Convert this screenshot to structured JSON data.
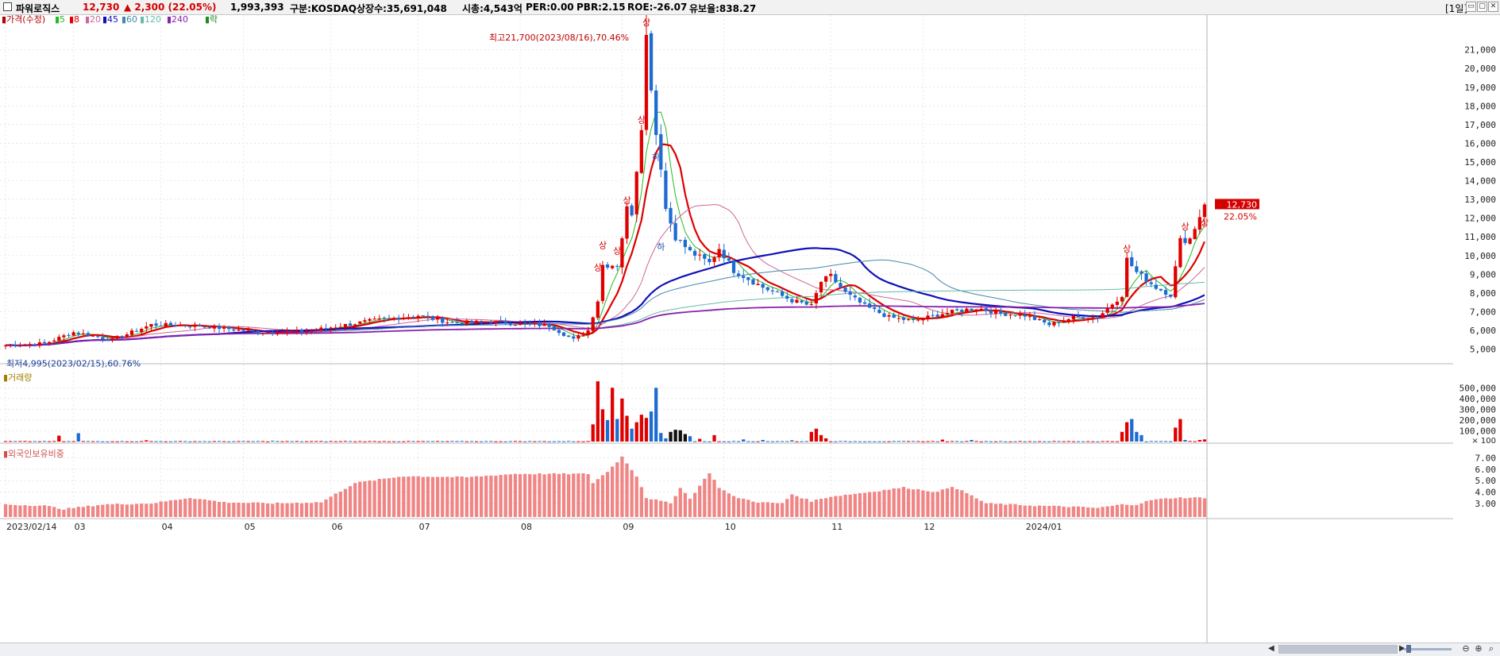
{
  "header": {
    "name": "파워로직스",
    "price": "12,730",
    "change": "▲ 2,300 (22.05%)",
    "volume": "1,993,393",
    "market": "구분:KOSDAQ",
    "shares": "상장수:35,691,048",
    "cap": "시총:4,543억",
    "per": "PER:0.00",
    "pbr": "PBR:2.15",
    "roe": "ROE:-26.07",
    "float": "유보율:838.27",
    "period": "[1일]",
    "win_buttons": [
      "▭",
      "▢",
      "✕"
    ]
  },
  "colors": {
    "up": "#e00000",
    "down": "#1e6cd0",
    "neutral": "#111111",
    "ma5": "#22bb22",
    "ma8": "#dd0000",
    "ma20": "#cc6699",
    "ma45": "#1010b8",
    "ma60": "#4488aa",
    "ma120": "#66bbaa",
    "ma240": "#8822aa",
    "foreign": "#f08585",
    "grid": "#e8e8e8"
  },
  "chart_data": [
    {
      "type": "candlestick",
      "title": "가격(수정)",
      "legend": [
        "가격(수정)",
        "5",
        "8",
        "20",
        "45",
        "60",
        "120",
        "240",
        "락"
      ],
      "x_labels": [
        "2023/02/14",
        "03",
        "04",
        "05",
        "06",
        "07",
        "08",
        "09",
        "10",
        "11",
        "12",
        "2024/01"
      ],
      "y_ticks": [
        5000,
        6000,
        7000,
        8000,
        9000,
        10000,
        11000,
        12000,
        13000,
        14000,
        15000,
        16000,
        17000,
        18000,
        19000,
        20000,
        21000
      ],
      "y_tick_labels": [
        "5,000",
        "6,000",
        "7,000",
        "8,000",
        "9,000",
        "10,000",
        "11,000",
        "12,000",
        "13,000",
        "14,000",
        "15,000",
        "16,000",
        "17,000",
        "18,000",
        "19,000",
        "20,000",
        "21,000"
      ],
      "ylim": [
        4300,
        22600
      ],
      "high_annotation": "최고21,700(2023/08/16),70.46%",
      "low_annotation": "최저4,995(2023/02/15),60.76%",
      "last_price": "12,730",
      "last_change": "22.05%",
      "event_markers": [
        "상",
        "상",
        "상",
        "상",
        "상",
        "상",
        "상",
        "하",
        "하",
        "상",
        "상"
      ],
      "anchors": [
        [
          0,
          5200
        ],
        [
          8,
          5300
        ],
        [
          14,
          5900
        ],
        [
          22,
          5500
        ],
        [
          30,
          6300
        ],
        [
          40,
          6250
        ],
        [
          52,
          5900
        ],
        [
          62,
          5950
        ],
        [
          75,
          6500
        ],
        [
          85,
          6800
        ],
        [
          92,
          6400
        ],
        [
          100,
          6450
        ],
        [
          112,
          6250
        ],
        [
          117,
          5500
        ],
        [
          120,
          6000
        ],
        [
          122,
          7600
        ],
        [
          123,
          9500
        ],
        [
          126,
          9500
        ],
        [
          128,
          12500
        ],
        [
          129,
          12300
        ],
        [
          131,
          17000
        ],
        [
          132,
          21700
        ],
        [
          134,
          16500
        ],
        [
          135,
          14800
        ],
        [
          136,
          12500
        ],
        [
          138,
          11000
        ],
        [
          141,
          10200
        ],
        [
          145,
          9600
        ],
        [
          147,
          10400
        ],
        [
          150,
          9200
        ],
        [
          156,
          8300
        ],
        [
          162,
          7600
        ],
        [
          166,
          7300
        ],
        [
          168,
          8600
        ],
        [
          170,
          8900
        ],
        [
          173,
          8000
        ],
        [
          177,
          7300
        ],
        [
          182,
          6700
        ],
        [
          187,
          6500
        ],
        [
          193,
          6900
        ],
        [
          200,
          7200
        ],
        [
          205,
          6900
        ],
        [
          210,
          6800
        ],
        [
          215,
          6300
        ],
        [
          220,
          6700
        ],
        [
          225,
          6700
        ],
        [
          230,
          7900
        ],
        [
          231,
          9800
        ],
        [
          233,
          9100
        ],
        [
          237,
          8300
        ],
        [
          240,
          7900
        ],
        [
          242,
          10800
        ],
        [
          244,
          10900
        ],
        [
          247,
          12730
        ]
      ],
      "ma_periods": [
        5,
        8,
        20,
        45,
        60,
        120,
        240
      ]
    },
    {
      "type": "bar",
      "title": "거래량",
      "y_ticks": [
        100000,
        200000,
        300000,
        400000,
        500000
      ],
      "y_tick_labels": [
        "100,000",
        "200,000",
        "300,000",
        "400,000",
        "500,000"
      ],
      "unit_label": "× 100",
      "ylim": [
        0,
        620000
      ],
      "spikes": [
        [
          11,
          55000
        ],
        [
          15,
          78000
        ],
        [
          29,
          12000
        ],
        [
          55,
          8000
        ],
        [
          70,
          6000
        ],
        [
          121,
          160000
        ],
        [
          122,
          560000
        ],
        [
          123,
          300000
        ],
        [
          124,
          200000
        ],
        [
          125,
          500000
        ],
        [
          126,
          210000
        ],
        [
          127,
          400000
        ],
        [
          128,
          240000
        ],
        [
          129,
          120000
        ],
        [
          130,
          180000
        ],
        [
          131,
          250000
        ],
        [
          132,
          220000
        ],
        [
          133,
          280000
        ],
        [
          134,
          500000
        ],
        [
          135,
          80000
        ],
        [
          136,
          30000
        ],
        [
          137,
          90000
        ],
        [
          138,
          110000
        ],
        [
          139,
          105000
        ],
        [
          140,
          70000
        ],
        [
          141,
          50000
        ],
        [
          143,
          25000
        ],
        [
          146,
          60000
        ],
        [
          152,
          20000
        ],
        [
          156,
          15000
        ],
        [
          162,
          12000
        ],
        [
          166,
          90000
        ],
        [
          167,
          120000
        ],
        [
          168,
          60000
        ],
        [
          169,
          30000
        ],
        [
          193,
          18000
        ],
        [
          199,
          15000
        ],
        [
          230,
          90000
        ],
        [
          231,
          180000
        ],
        [
          232,
          210000
        ],
        [
          233,
          90000
        ],
        [
          234,
          60000
        ],
        [
          241,
          130000
        ],
        [
          242,
          210000
        ],
        [
          243,
          15000
        ],
        [
          246,
          15000
        ],
        [
          247,
          20000
        ]
      ]
    },
    {
      "type": "bar",
      "title": "외국인보유비중",
      "y_ticks": [
        3.0,
        4.0,
        5.0,
        6.0,
        7.0
      ],
      "y_tick_labels": [
        "3.00",
        "4.00",
        "5.00",
        "6.00",
        "7.00"
      ],
      "ylim": [
        1.8,
        7.6
      ],
      "anchors": [
        [
          0,
          2.9
        ],
        [
          8,
          2.8
        ],
        [
          12,
          2.5
        ],
        [
          20,
          2.9
        ],
        [
          30,
          3.0
        ],
        [
          38,
          3.5
        ],
        [
          45,
          3.1
        ],
        [
          55,
          3.0
        ],
        [
          65,
          3.1
        ],
        [
          72,
          4.8
        ],
        [
          82,
          5.4
        ],
        [
          95,
          5.3
        ],
        [
          105,
          5.6
        ],
        [
          115,
          5.6
        ],
        [
          120,
          5.6
        ],
        [
          121,
          4.8
        ],
        [
          124,
          5.8
        ],
        [
          127,
          7.1
        ],
        [
          130,
          5.4
        ],
        [
          132,
          3.5
        ],
        [
          137,
          3.0
        ],
        [
          139,
          4.4
        ],
        [
          141,
          3.4
        ],
        [
          145,
          5.7
        ],
        [
          147,
          4.4
        ],
        [
          150,
          3.6
        ],
        [
          155,
          3.1
        ],
        [
          160,
          3.0
        ],
        [
          162,
          3.8
        ],
        [
          166,
          3.2
        ],
        [
          170,
          3.6
        ],
        [
          178,
          4.0
        ],
        [
          185,
          4.4
        ],
        [
          192,
          4.0
        ],
        [
          195,
          4.5
        ],
        [
          198,
          3.9
        ],
        [
          202,
          3.0
        ],
        [
          212,
          2.8
        ],
        [
          220,
          2.7
        ],
        [
          225,
          2.6
        ],
        [
          230,
          2.9
        ],
        [
          233,
          2.9
        ],
        [
          236,
          3.3
        ],
        [
          241,
          3.5
        ],
        [
          247,
          3.5
        ]
      ]
    }
  ],
  "bottom": {
    "zoom_icons": [
      "⊖",
      "⊕",
      "⌕"
    ]
  }
}
